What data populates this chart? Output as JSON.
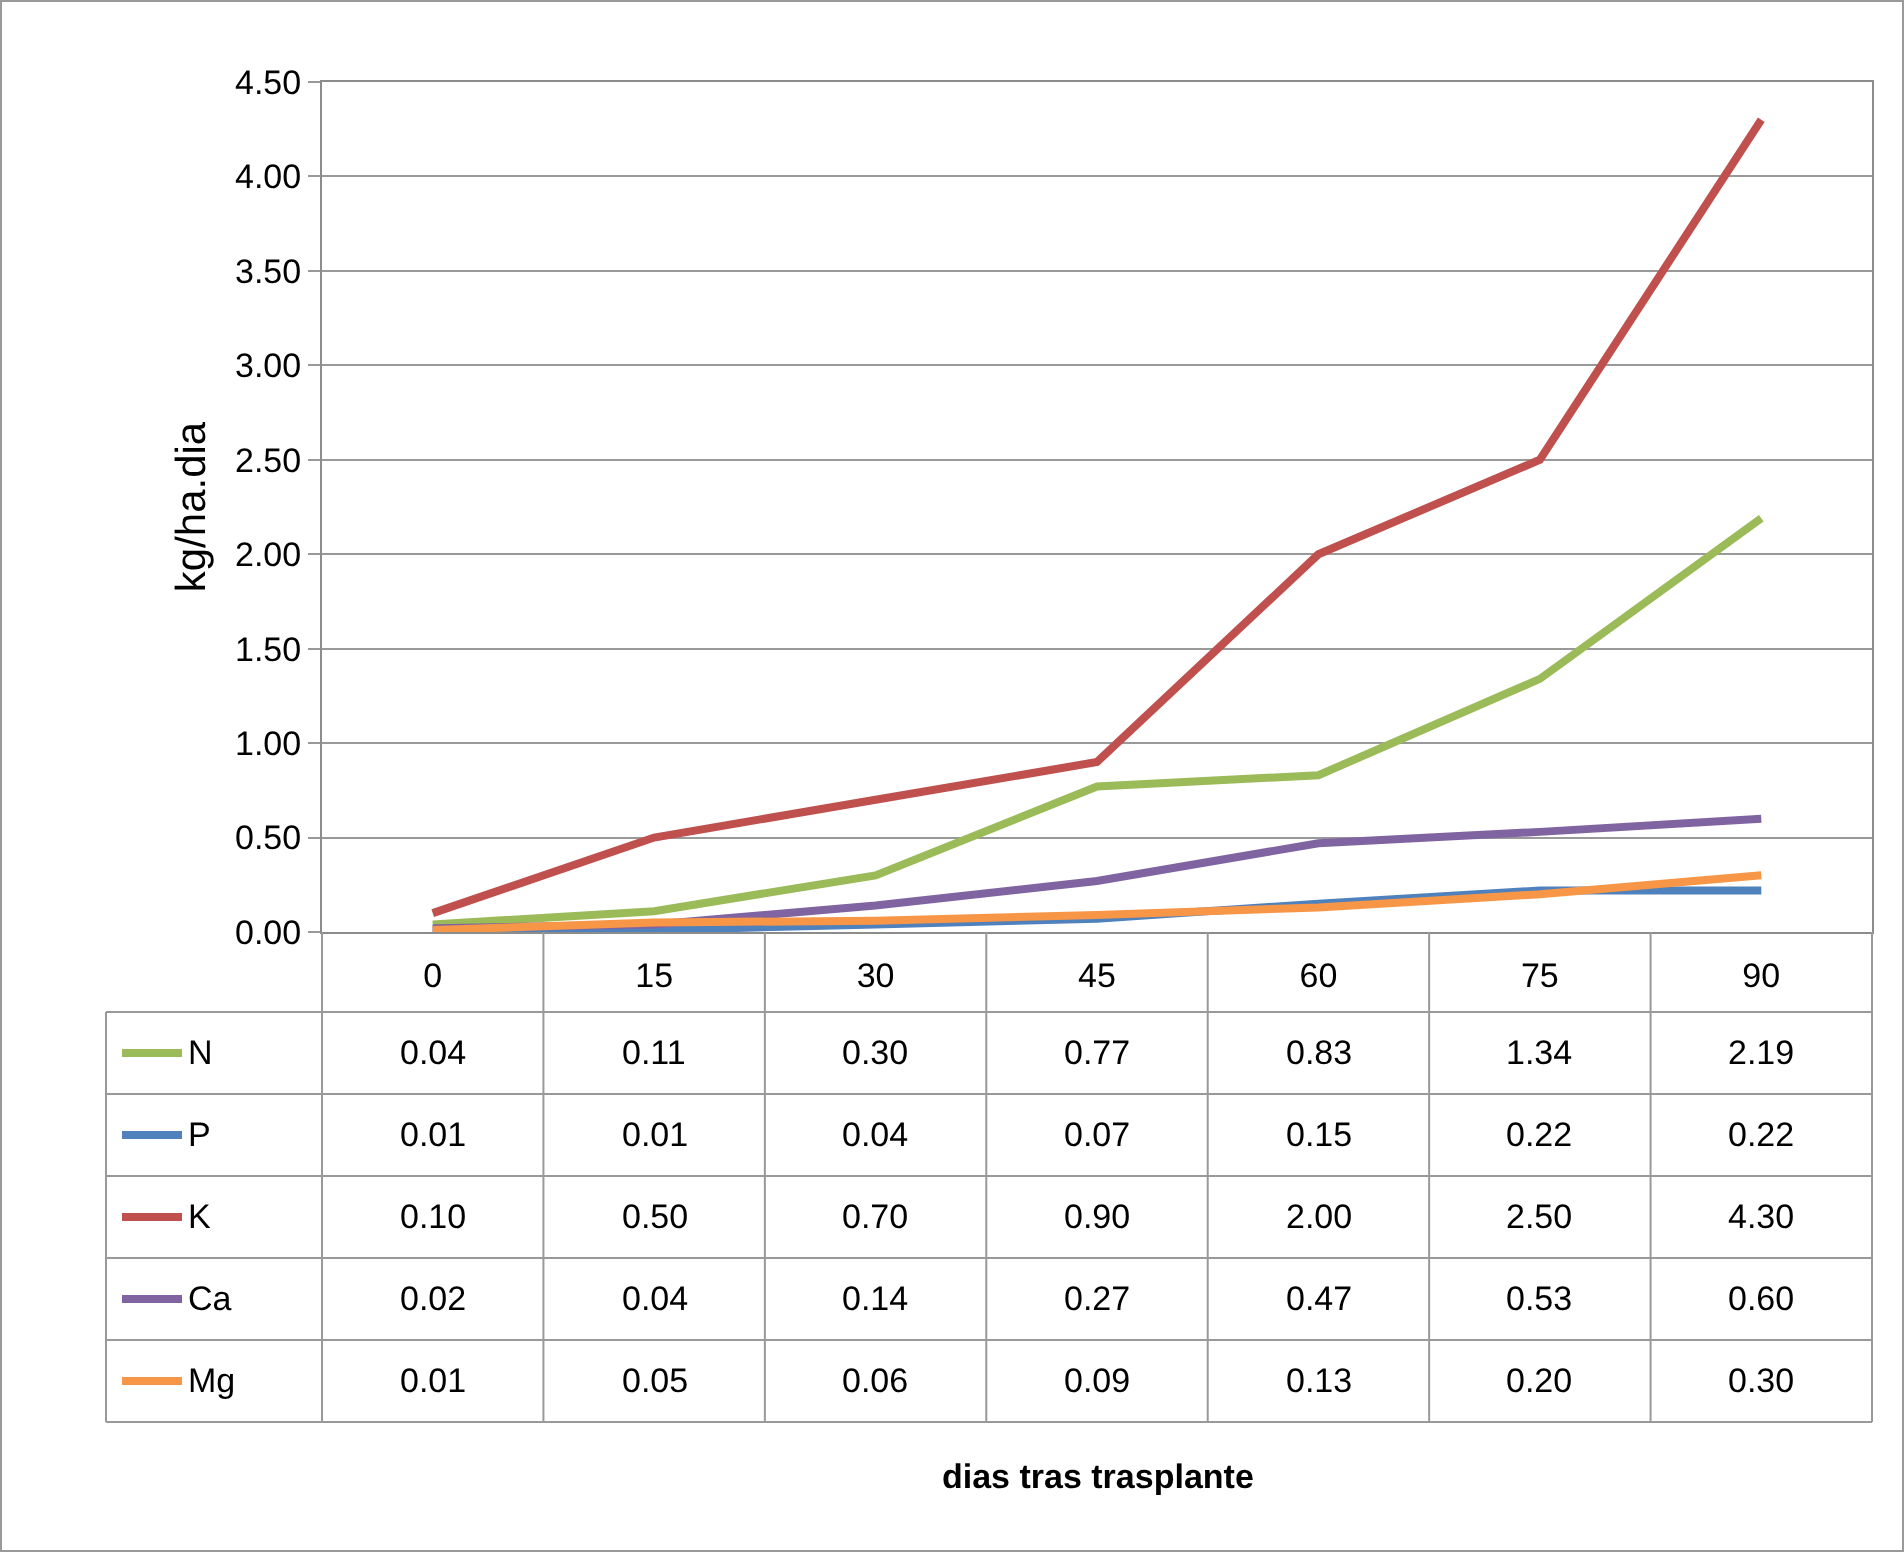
{
  "chart_data": {
    "type": "line",
    "annotations": [
      "dias tras trasplante"
    ],
    "ylabel": "kg/ha.dia",
    "categories": [
      "0",
      "15",
      "30",
      "45",
      "60",
      "75",
      "90"
    ],
    "series": [
      {
        "name": "N",
        "color": "#9bbb59",
        "values": [
          0.04,
          0.11,
          0.3,
          0.77,
          0.83,
          1.34,
          2.19
        ],
        "value_labels": [
          "0.04",
          "0.11",
          "0.30",
          "0.77",
          "0.83",
          "1.34",
          "2.19"
        ]
      },
      {
        "name": "P",
        "color": "#4f81bd",
        "values": [
          0.01,
          0.01,
          0.04,
          0.07,
          0.15,
          0.22,
          0.22
        ],
        "value_labels": [
          "0.01",
          "0.01",
          "0.04",
          "0.07",
          "0.15",
          "0.22",
          "0.22"
        ]
      },
      {
        "name": "K",
        "color": "#c0504d",
        "values": [
          0.1,
          0.5,
          0.7,
          0.9,
          2.0,
          2.5,
          4.3
        ],
        "value_labels": [
          "0.10",
          "0.50",
          "0.70",
          "0.90",
          "2.00",
          "2.50",
          "4.30"
        ]
      },
      {
        "name": "Ca",
        "color": "#8064a2",
        "values": [
          0.02,
          0.04,
          0.14,
          0.27,
          0.47,
          0.53,
          0.6
        ],
        "value_labels": [
          "0.02",
          "0.04",
          "0.14",
          "0.27",
          "0.47",
          "0.53",
          "0.60"
        ]
      },
      {
        "name": "Mg",
        "color": "#f79646",
        "values": [
          0.01,
          0.05,
          0.06,
          0.09,
          0.13,
          0.2,
          0.3
        ],
        "value_labels": [
          "0.01",
          "0.05",
          "0.06",
          "0.09",
          "0.13",
          "0.20",
          "0.30"
        ]
      }
    ],
    "ylim": [
      0,
      4.5
    ],
    "yticks": [
      {
        "value": 0,
        "label": "0.00"
      },
      {
        "value": 0.5,
        "label": "0.50"
      },
      {
        "value": 1,
        "label": "1.00"
      },
      {
        "value": 1.5,
        "label": "1.50"
      },
      {
        "value": 2,
        "label": "2.00"
      },
      {
        "value": 2.5,
        "label": "2.50"
      },
      {
        "value": 3,
        "label": "3.00"
      },
      {
        "value": 3.5,
        "label": "3.50"
      },
      {
        "value": 4,
        "label": "4.00"
      },
      {
        "value": 4.5,
        "label": "4.50"
      }
    ],
    "grid": "y",
    "legend": "bottom",
    "marker": "none",
    "line_style": "solid"
  }
}
